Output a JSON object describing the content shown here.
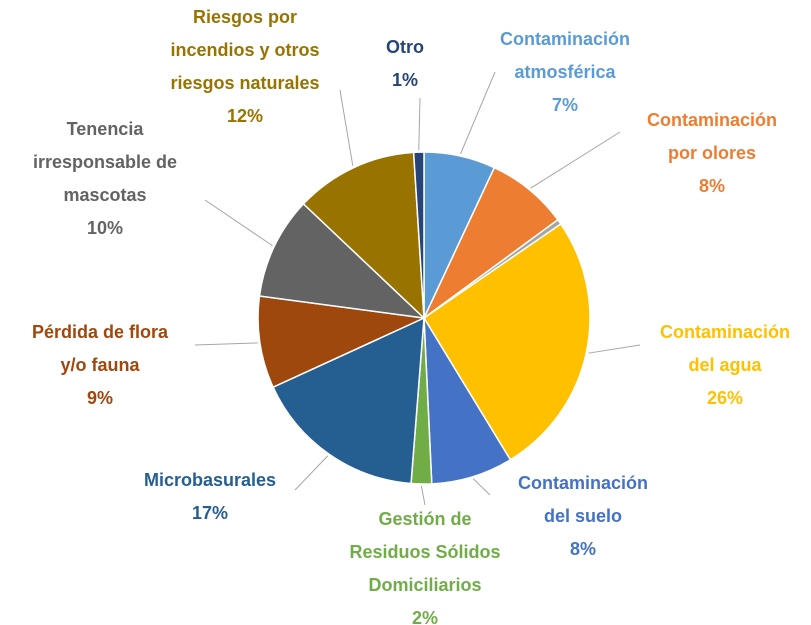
{
  "chart_data": {
    "type": "pie",
    "categories": [
      [
        "Contaminación",
        "atmosférica"
      ],
      [
        "Contaminación",
        "por olores"
      ],
      null,
      [
        "Contaminación",
        "del agua"
      ],
      [
        "Contaminación",
        "del suelo"
      ],
      [
        "Gestión de",
        "Residuos Sólidos",
        "Domiciliarios"
      ],
      [
        "Microbasurales"
      ],
      [
        "Pérdida de flora",
        "y/o fauna"
      ],
      [
        "Tenencia",
        "irresponsable de",
        "mascotas"
      ],
      [
        "Riesgos por",
        "incendios y otros",
        "riesgos naturales"
      ],
      [
        "Otro"
      ]
    ],
    "values": [
      7,
      8,
      0.5,
      26,
      8,
      2,
      17,
      9,
      10,
      12,
      1
    ],
    "value_labels": [
      "7%",
      "8%",
      null,
      "26%",
      "8%",
      "2%",
      "17%",
      "9%",
      "10%",
      "12%",
      "1%"
    ],
    "colors": [
      "#5b9bd5",
      "#ed7d31",
      "#a5a5a5",
      "#ffc000",
      "#4472c4",
      "#70ad47",
      "#255e91",
      "#9e480e",
      "#636363",
      "#997300",
      "#264478"
    ]
  }
}
